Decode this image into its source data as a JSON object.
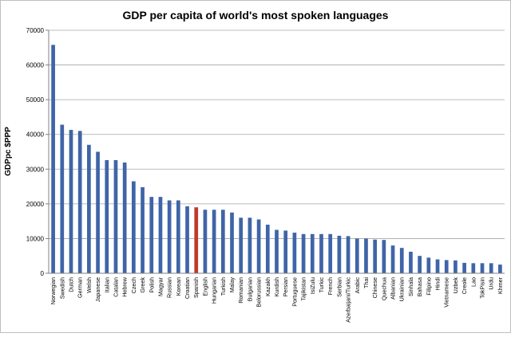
{
  "chart_data": {
    "type": "bar",
    "title": "GDP per capita of world's most spoken languages",
    "xlabel": "",
    "ylabel": "GDPpc $PPP",
    "ylim": [
      0,
      70000
    ],
    "yticks": [
      0,
      10000,
      20000,
      30000,
      40000,
      50000,
      60000,
      70000
    ],
    "grid": true,
    "legend": "none",
    "bar_color": "#3f65a8",
    "highlight_color": "#c0392b",
    "highlight_category": "Spanish",
    "categories": [
      "Norwegian",
      "Swedish",
      "Dutch",
      "German",
      "Welsh",
      "Japanese",
      "Italian",
      "Catalan",
      "Hebrew",
      "Czech",
      "Greek",
      "Polish",
      "Magyar",
      "Russian",
      "Korean",
      "Croatian",
      "Spanish",
      "English",
      "Hungarian",
      "Turkish",
      "Malay",
      "Romanian",
      "Bulgarian",
      "Belorussian",
      "Kazakh",
      "Kurdish",
      "Persian",
      "Portuguese",
      "Tajikistan",
      "IsiZulu",
      "Turkic",
      "French",
      "Serbian",
      "Azerbaijani/Turkic",
      "Arabic",
      "Thai",
      "Chinese",
      "Quechua",
      "Albanian",
      "Ukrainian",
      "Sinhala",
      "Bahasa",
      "Filipino",
      "Hindi",
      "Vietnamese",
      "Uzbek",
      "Creole",
      "Lao",
      "TokPisin",
      "Urdu",
      "Khmer"
    ],
    "values": [
      65800,
      42800,
      41300,
      41000,
      37000,
      35000,
      32600,
      32600,
      31900,
      26500,
      24800,
      22000,
      22000,
      21000,
      21000,
      19300,
      19000,
      18300,
      18300,
      18300,
      17500,
      16000,
      16000,
      15500,
      14000,
      12500,
      12300,
      11700,
      11300,
      11300,
      11300,
      11300,
      10800,
      10700,
      10000,
      10000,
      9700,
      9600,
      8000,
      7300,
      6200,
      5000,
      4500,
      4000,
      3800,
      3700,
      3000,
      2900,
      2900,
      2900,
      2500
    ]
  }
}
